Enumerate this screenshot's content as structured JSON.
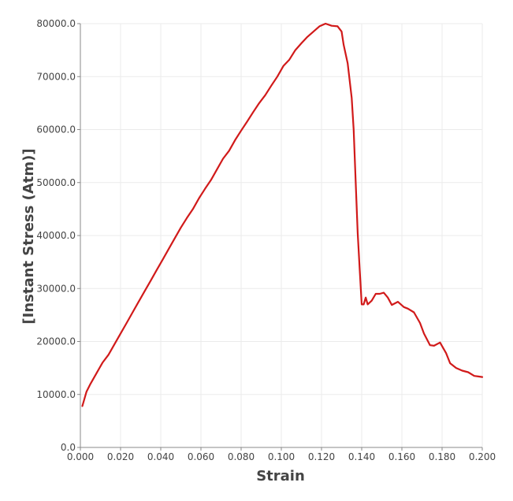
{
  "chart_data": {
    "type": "line",
    "title": "",
    "xlabel": "Strain",
    "ylabel": "[Instant Stress (Atm)]",
    "xlim": [
      0.0,
      0.2
    ],
    "ylim": [
      0.0,
      80000.0
    ],
    "grid": true,
    "colors": {
      "line": "#d11a1a",
      "grid": "#ebebeb",
      "axis": "#888888",
      "text": "#444444"
    },
    "x_ticks": [
      {
        "value": 0.0,
        "label": "0.000"
      },
      {
        "value": 0.02,
        "label": "0.020"
      },
      {
        "value": 0.04,
        "label": "0.040"
      },
      {
        "value": 0.06,
        "label": "0.060"
      },
      {
        "value": 0.08,
        "label": "0.080"
      },
      {
        "value": 0.1,
        "label": "0.100"
      },
      {
        "value": 0.12,
        "label": "0.120"
      },
      {
        "value": 0.14,
        "label": "0.140"
      },
      {
        "value": 0.16,
        "label": "0.160"
      },
      {
        "value": 0.18,
        "label": "0.180"
      },
      {
        "value": 0.2,
        "label": "0.200"
      }
    ],
    "y_ticks": [
      {
        "value": 0,
        "label": "0.0"
      },
      {
        "value": 10000,
        "label": "10000.0"
      },
      {
        "value": 20000,
        "label": "20000.0"
      },
      {
        "value": 30000,
        "label": "30000.0"
      },
      {
        "value": 40000,
        "label": "40000.0"
      },
      {
        "value": 50000,
        "label": "50000.0"
      },
      {
        "value": 60000,
        "label": "60000.0"
      },
      {
        "value": 70000,
        "label": "70000.0"
      },
      {
        "value": 80000,
        "label": "80000.0"
      }
    ],
    "series": [
      {
        "x": [
          0.001,
          0.003,
          0.005,
          0.008,
          0.011,
          0.014,
          0.017,
          0.02,
          0.023,
          0.026,
          0.029,
          0.032,
          0.035,
          0.038,
          0.041,
          0.044,
          0.047,
          0.05,
          0.053,
          0.056,
          0.059,
          0.062,
          0.065,
          0.068,
          0.071,
          0.074,
          0.077,
          0.08,
          0.083,
          0.086,
          0.089,
          0.092,
          0.095,
          0.098,
          0.101,
          0.104,
          0.107,
          0.11,
          0.113,
          0.116,
          0.119,
          0.122,
          0.125,
          0.128,
          0.13,
          0.131,
          0.133,
          0.135,
          0.136,
          0.137,
          0.138,
          0.139,
          0.14,
          0.141,
          0.142,
          0.143,
          0.145,
          0.147,
          0.149,
          0.151,
          0.153,
          0.155,
          0.158,
          0.161,
          0.163,
          0.166,
          0.169,
          0.171,
          0.174,
          0.176,
          0.179,
          0.182,
          0.184,
          0.187,
          0.19,
          0.193,
          0.196,
          0.198,
          0.2
        ],
        "y": [
          7800,
          10500,
          12000,
          14000,
          16000,
          17500,
          19500,
          21500,
          23500,
          25500,
          27500,
          29500,
          31500,
          33500,
          35500,
          37500,
          39500,
          41500,
          43300,
          45000,
          47000,
          48800,
          50500,
          52500,
          54500,
          56000,
          58000,
          59800,
          61500,
          63300,
          65000,
          66500,
          68300,
          70000,
          72000,
          73200,
          75000,
          76300,
          77500,
          78500,
          79500,
          80000,
          79600,
          79500,
          78500,
          76000,
          72500,
          66000,
          60000,
          50000,
          40500,
          33500,
          27000,
          27000,
          28300,
          27000,
          27700,
          29000,
          29000,
          29200,
          28300,
          26900,
          27500,
          26500,
          26200,
          25500,
          23500,
          21500,
          19300,
          19200,
          19800,
          17800,
          15900,
          15000,
          14500,
          14200,
          13500,
          13400,
          13300
        ]
      }
    ]
  }
}
